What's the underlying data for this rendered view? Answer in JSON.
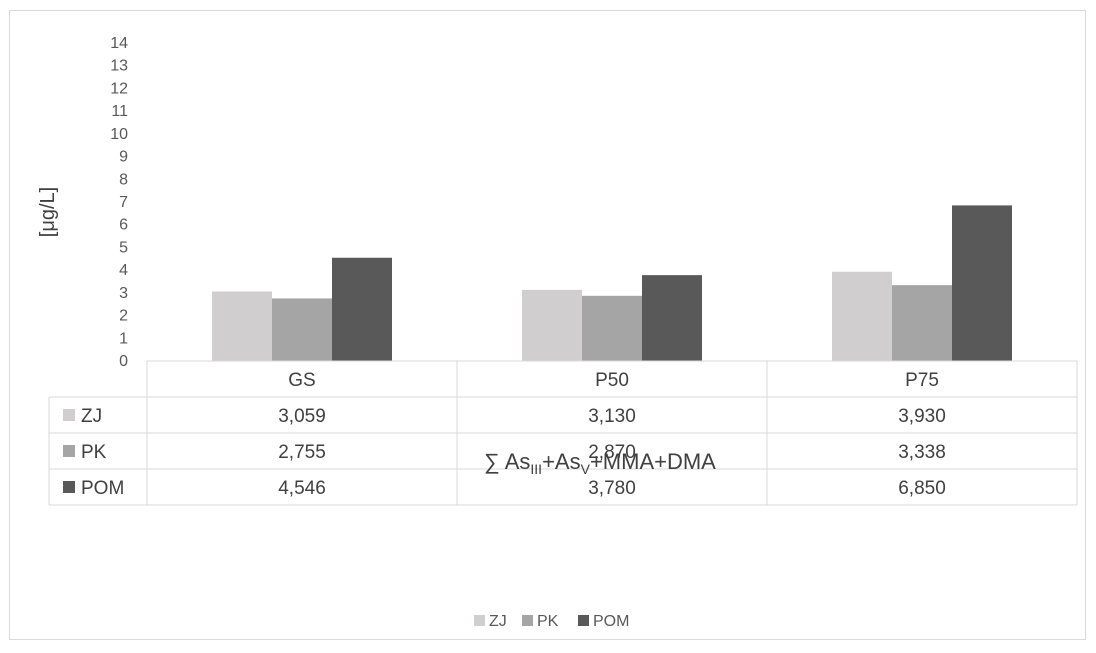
{
  "colors": {
    "ZJ": "#d0cece",
    "PK": "#a5a5a5",
    "POM": "#595959",
    "grid": "#d9d9d9",
    "text": "#595959"
  },
  "chart_data": {
    "type": "bar",
    "categories": [
      "GS",
      "P50",
      "P75"
    ],
    "series": [
      {
        "name": "ZJ",
        "values": [
          3.059,
          3.13,
          3.93
        ],
        "labels": [
          "3,059",
          "3,130",
          "3,930"
        ],
        "color": "#d0cece"
      },
      {
        "name": "PK",
        "values": [
          2.755,
          2.87,
          3.338
        ],
        "labels": [
          "2,755",
          "2,870",
          "3,338"
        ],
        "color": "#a5a5a5"
      },
      {
        "name": "POM",
        "values": [
          4.546,
          3.78,
          6.85
        ],
        "labels": [
          "4,546",
          "3,780",
          "6,850"
        ],
        "color": "#595959"
      }
    ],
    "ylabel": "[μg/L]",
    "xlabel_parts": [
      "∑ As",
      "III",
      "+As",
      "V",
      "+MMA+DMA"
    ],
    "ylim": [
      0,
      14
    ],
    "yticks": [
      "0",
      "1",
      "2",
      "3",
      "4",
      "5",
      "6",
      "7",
      "8",
      "9",
      "10",
      "11",
      "12",
      "13",
      "14"
    ],
    "legend_position": "bottom-center",
    "data_table": true,
    "grid": false
  }
}
